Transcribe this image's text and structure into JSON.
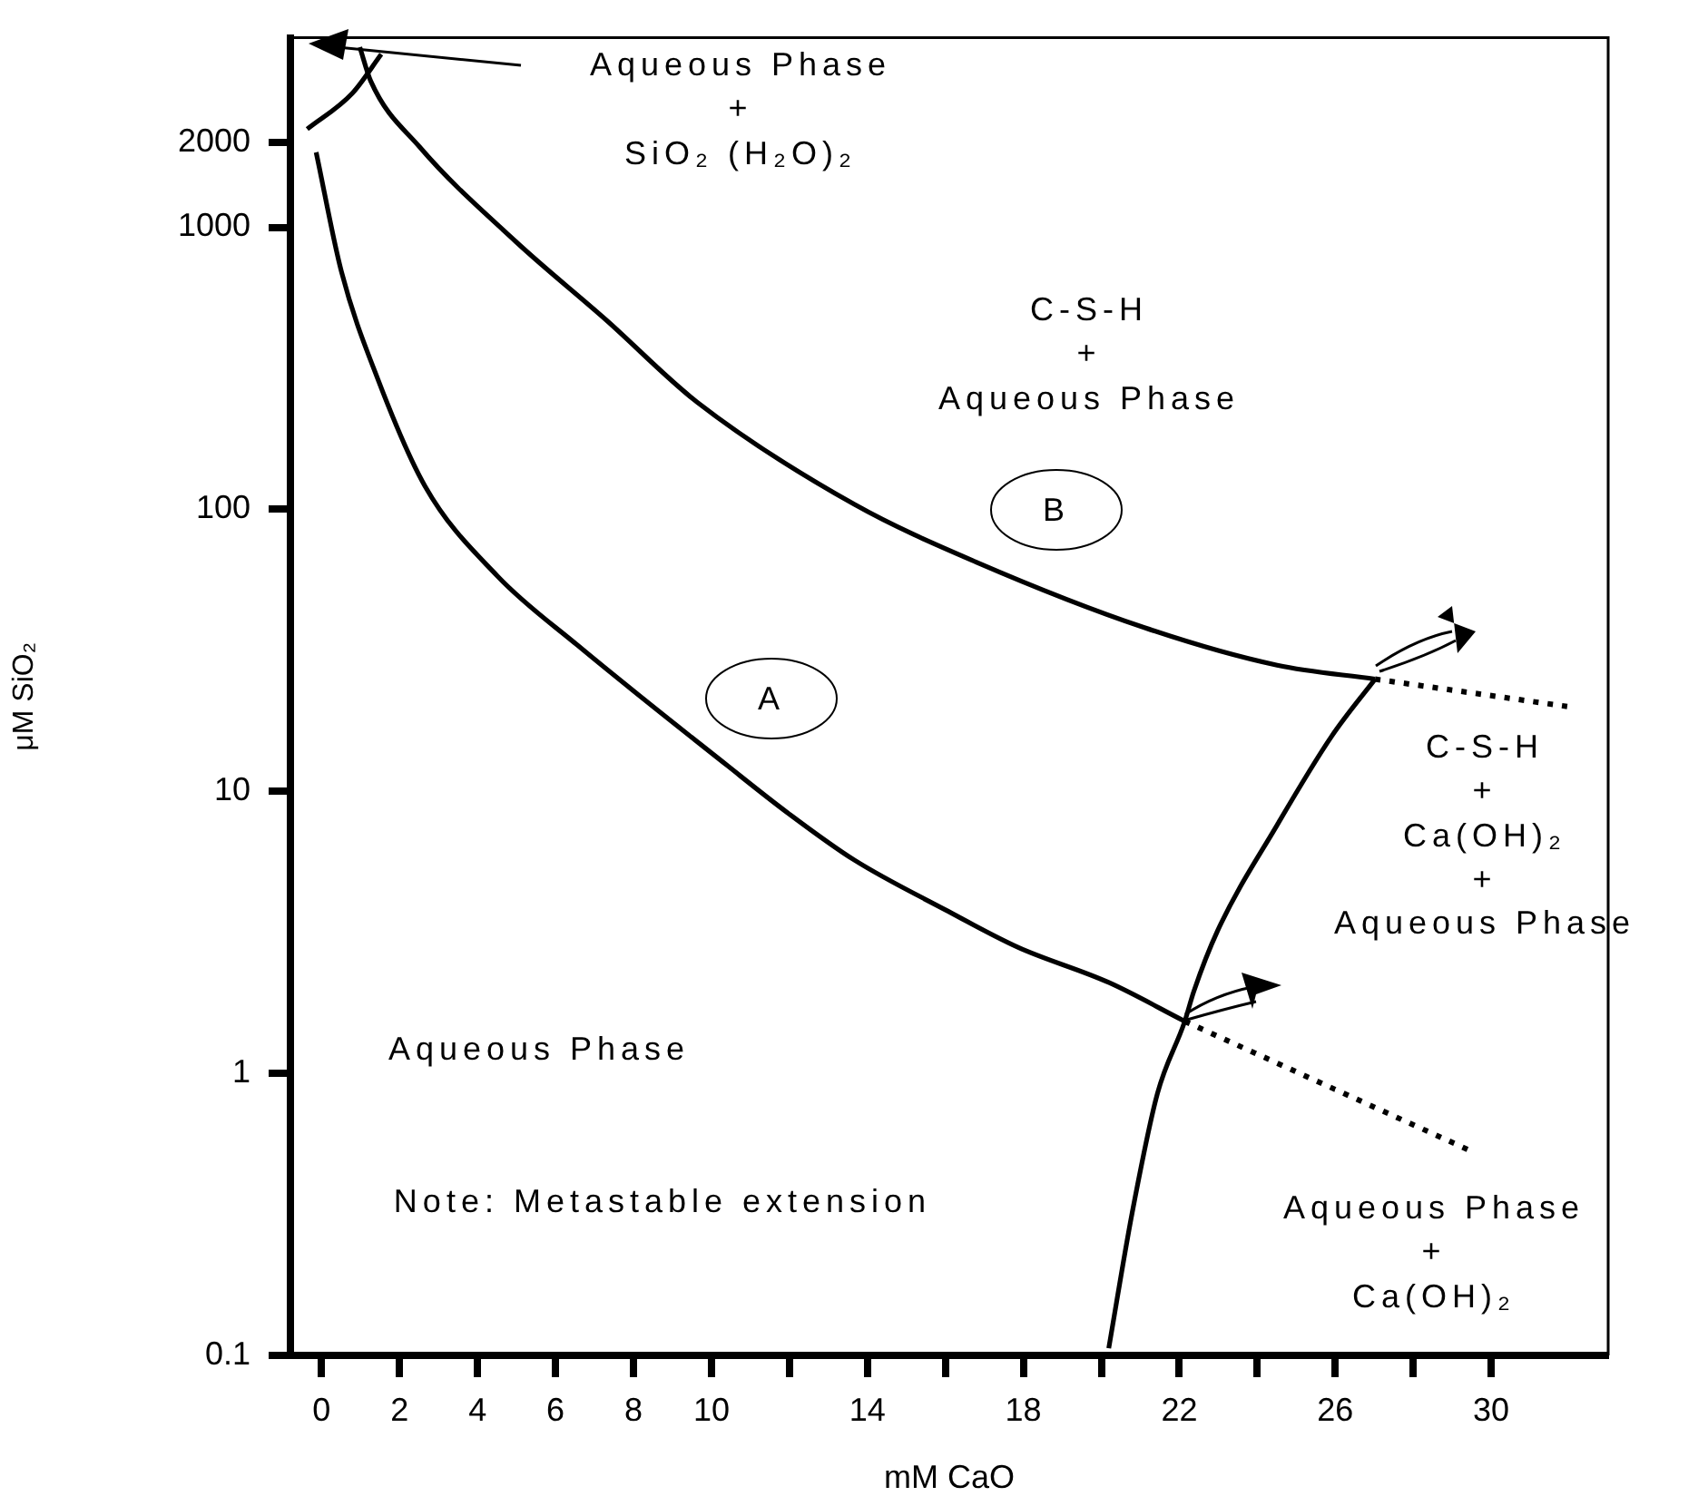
{
  "chart_data": {
    "type": "line",
    "xlabel": "mM CaO",
    "ylabel": "μM SiO₂",
    "log": "y",
    "grid": false,
    "legend": false,
    "marker": "none",
    "xlim": [
      -0.8,
      33
    ],
    "xticks": [
      0,
      2,
      4,
      6,
      8,
      10,
      {
        "value": 12,
        "label": null
      },
      14,
      {
        "value": 16,
        "label": null
      },
      18,
      {
        "value": 20,
        "label": null
      },
      22,
      {
        "value": 24,
        "label": null
      },
      26,
      {
        "value": 28,
        "label": null
      },
      30
    ],
    "ylim": [
      0.1,
      4700
    ],
    "yticks": [
      0.1,
      1,
      10,
      100,
      1000,
      2000
    ],
    "series": [
      {
        "color": "#000000",
        "line_style": "solid",
        "x": [
          -0.14,
          0.51,
          1.44,
          2.65,
          4.51,
          6.56,
          10.42,
          11.95,
          13.67,
          16.0,
          17.86,
          20.19,
          22.14
        ],
        "values": [
          1845,
          695,
          290,
          121,
          58,
          33,
          12.3,
          8.4,
          5.7,
          3.8,
          2.8,
          2.1,
          1.53
        ]
      },
      {
        "color": "#000000",
        "line_style": "solid",
        "x": [
          0.98,
          1.26,
          2.51,
          4.98,
          7.3,
          9.63,
          13.67,
          16.79,
          21.12,
          24.51,
          27.02
        ],
        "values": [
          4350,
          3300,
          1930,
          890,
          469,
          240,
          104,
          65,
          38,
          28,
          25
        ]
      },
      {
        "color": "#000000",
        "line_style": "solid",
        "x": [
          -0.37,
          0.79,
          1.53
        ],
        "values": [
          2230,
          2990,
          4110
        ]
      },
      {
        "color": "#000000",
        "line_style": "solid",
        "x": [
          20.19,
          20.79,
          21.44,
          22.14,
          22.37,
          22.98,
          24.51,
          25.91,
          27.02
        ],
        "values": [
          0.106,
          0.32,
          0.85,
          1.53,
          1.95,
          3.2,
          7.6,
          15.7,
          25
        ]
      },
      {
        "color": "#000000",
        "line_style": "dotted",
        "x": [
          27.02,
          31.95
        ],
        "values": [
          25,
          20
        ]
      },
      {
        "color": "#000000",
        "line_style": "dotted",
        "x": [
          22.14,
          29.49
        ],
        "values": [
          1.53,
          0.53
        ]
      }
    ],
    "annotations": [
      "Aqueous Phase\n+\nSiO₂ (H₂O)₂",
      "C-S-H\n+\nAqueous Phase",
      "B",
      "A",
      "C-S-H\n+\nCa(OH)₂\n+\nAqueous Phase",
      "Aqueous Phase",
      "Aqueous Phase\n+\nCa(OH)₂",
      "Note: Metastable extension"
    ]
  }
}
